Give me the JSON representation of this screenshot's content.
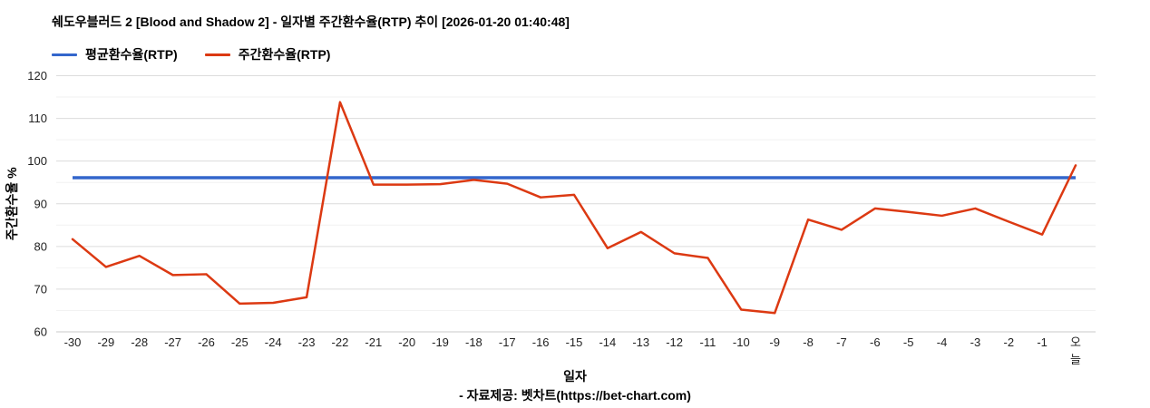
{
  "title": "쉐도우블러드 2 [Blood and Shadow 2] - 일자별 주간환수율(RTP) 추이 [2026-01-20 01:40:48]",
  "legend": [
    {
      "label": "평균환수율(RTP)",
      "color": "#3366cc"
    },
    {
      "label": "주간환수율(RTP)",
      "color": "#dc3912"
    }
  ],
  "footer": "- 자료제공: 벳차트(https://bet-chart.com)",
  "colors": {
    "average_line": "#3366cc",
    "weekly_line": "#dc3912",
    "major_gridline": "#dcdcdc",
    "minor_gridline": "#f2f2f2",
    "axis_baseline": "#c8c8c8",
    "tick_text": "#222222"
  },
  "chart_data": {
    "type": "line",
    "title": "쉐도우블러드 2 [Blood and Shadow 2] - 일자별 주간환수율(RTP) 추이 [2026-01-20 01:40:48]",
    "xlabel": "일자",
    "ylabel": "주간환수율 %",
    "ylim": [
      60,
      120
    ],
    "ytick_step": 10,
    "minor_grid_step": 5,
    "grid": true,
    "legend_position": "top-left",
    "categories": [
      "-30",
      "-29",
      "-28",
      "-27",
      "-26",
      "-25",
      "-24",
      "-23",
      "-22",
      "-21",
      "-20",
      "-19",
      "-18",
      "-17",
      "-16",
      "-15",
      "-14",
      "-13",
      "-12",
      "-11",
      "-10",
      "-9",
      "-8",
      "-7",
      "-6",
      "-5",
      "-4",
      "-3",
      "-2",
      "-1",
      "오늘"
    ],
    "series": [
      {
        "name": "평균환수율(RTP)",
        "color": "#3366cc",
        "style": "constant-horizontal-line",
        "constant_value": 96.1
      },
      {
        "name": "주간환수율(RTP)",
        "color": "#dc3912",
        "values": [
          81.7,
          75.2,
          77.8,
          73.3,
          73.5,
          66.6,
          66.8,
          68.1,
          113.8,
          94.5,
          94.5,
          94.6,
          95.6,
          94.7,
          91.5,
          92.1,
          79.6,
          83.4,
          78.4,
          77.3,
          65.2,
          64.4,
          86.3,
          83.9,
          88.9,
          88.1,
          87.2,
          88.9,
          85.8,
          82.8,
          99.0
        ]
      }
    ]
  }
}
